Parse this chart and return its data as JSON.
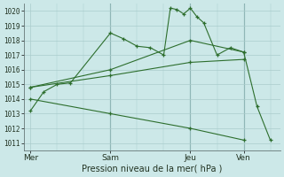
{
  "background_color": "#cce8e8",
  "grid_color": "#aacccc",
  "line_color": "#2d6e2d",
  "ylabel_min": 1011,
  "ylabel_max": 1020,
  "xlabel": "Pression niveau de la mer( hPa )",
  "xtick_labels": [
    "Mer",
    "Sam",
    "Jeu",
    "Ven"
  ],
  "xtick_positions": [
    0,
    24,
    48,
    64
  ],
  "xlim": [
    -2,
    75
  ],
  "series": [
    {
      "x": [
        0,
        4,
        8,
        12,
        24,
        28,
        32,
        36,
        40,
        42,
        44,
        46,
        48,
        50,
        52,
        56,
        60,
        64,
        68,
        72
      ],
      "y": [
        1013.2,
        1014.5,
        1015.0,
        1015.1,
        1018.5,
        1018.1,
        1017.6,
        1017.5,
        1017.0,
        1020.2,
        1020.1,
        1019.8,
        1020.2,
        1019.6,
        1019.2,
        1017.0,
        1017.5,
        1017.2,
        1013.5,
        1011.2
      ]
    },
    {
      "x": [
        0,
        24,
        48,
        64
      ],
      "y": [
        1014.8,
        1016.0,
        1018.0,
        1017.2
      ]
    },
    {
      "x": [
        0,
        24,
        48,
        64
      ],
      "y": [
        1014.8,
        1015.6,
        1016.5,
        1016.7
      ]
    },
    {
      "x": [
        0,
        24,
        48,
        64
      ],
      "y": [
        1014.0,
        1013.0,
        1012.0,
        1011.2
      ]
    }
  ],
  "vline_positions": [
    24,
    48,
    64
  ],
  "vline_color": "#558888",
  "figsize": [
    3.2,
    2.0
  ],
  "dpi": 100
}
